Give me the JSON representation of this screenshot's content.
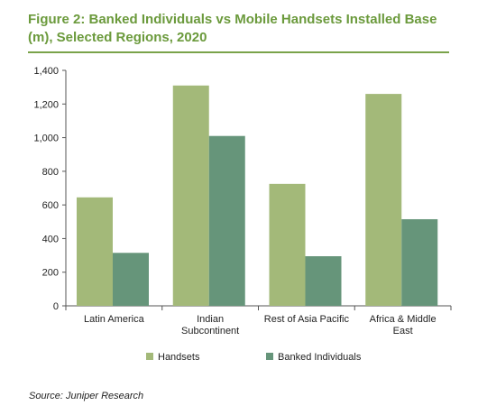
{
  "chart_data": {
    "type": "bar",
    "title": "Figure 2: Banked Individuals vs Mobile Handsets Installed Base (m), Selected Regions, 2020",
    "categories": [
      [
        "Latin America"
      ],
      [
        "Indian",
        "Subcontinent"
      ],
      [
        "Rest of Asia Pacific"
      ],
      [
        "Africa & Middle",
        "East"
      ]
    ],
    "series": [
      {
        "name": "Handsets",
        "color": "#a3b979",
        "values": [
          645,
          1310,
          725,
          1260
        ]
      },
      {
        "name": "Banked Individuals",
        "color": "#66957a",
        "values": [
          315,
          1010,
          295,
          515
        ]
      }
    ],
    "ylim": [
      0,
      1400
    ],
    "yticks": [
      "0",
      "200",
      "400",
      "600",
      "800",
      "1,000",
      "1,200",
      "1,400"
    ],
    "grid": false,
    "legend": "bottom"
  },
  "source": "Source: Juniper Research"
}
